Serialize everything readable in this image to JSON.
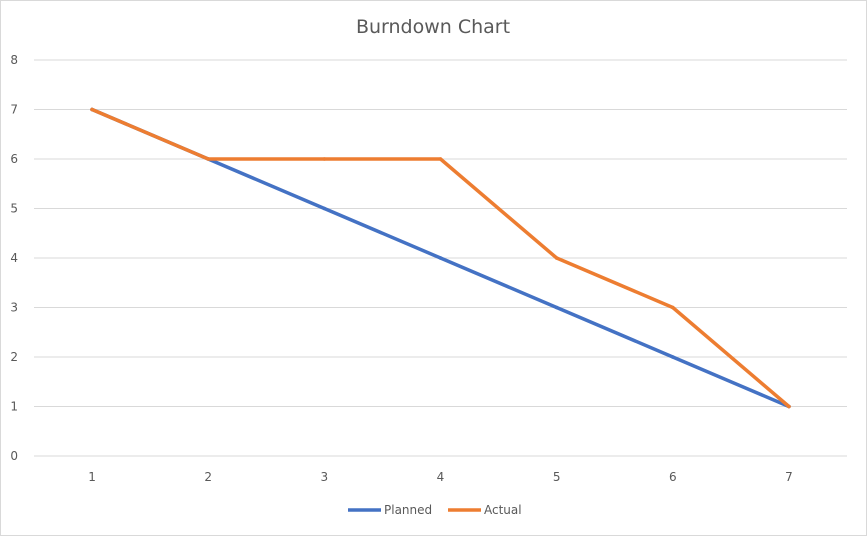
{
  "chart_data": {
    "type": "line",
    "title": "Burndown Chart",
    "xlabel": "",
    "ylabel": "",
    "categories": [
      "1",
      "2",
      "3",
      "4",
      "5",
      "6",
      "7"
    ],
    "ylim": [
      0,
      8
    ],
    "yticks": [
      "0",
      "1",
      "2",
      "3",
      "4",
      "5",
      "6",
      "7",
      "8"
    ],
    "grid": true,
    "legend_position": "bottom",
    "series": [
      {
        "name": "Planned",
        "color": "#4472c4",
        "values": [
          7,
          6,
          5,
          4,
          3,
          2,
          1
        ]
      },
      {
        "name": "Actual",
        "color": "#ed7d31",
        "values": [
          7,
          6,
          6,
          6,
          4,
          3,
          1
        ]
      }
    ]
  }
}
